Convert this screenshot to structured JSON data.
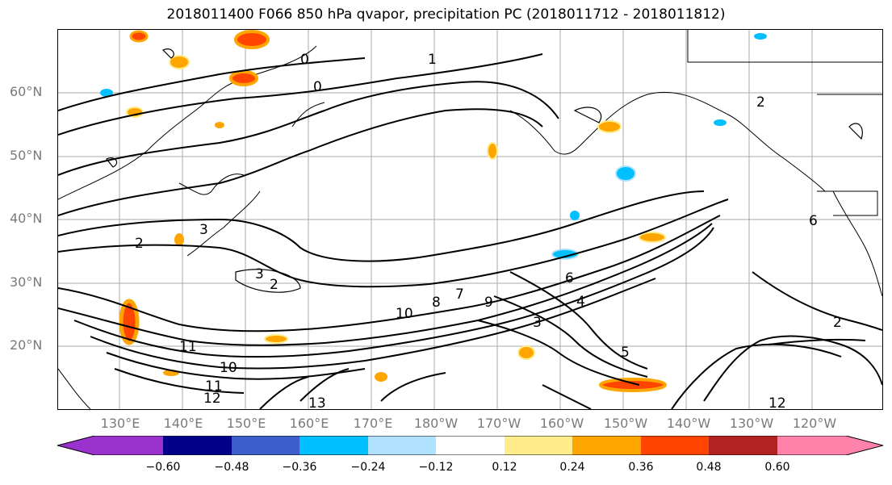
{
  "title": "2018011400 F066 850 hPa qvapor, precipitation PC (2018011712 - 2018011812)",
  "lat_labels": [
    "60°N",
    "50°N",
    "40°N",
    "30°N",
    "20°N"
  ],
  "lon_labels": [
    "130°E",
    "140°E",
    "150°E",
    "160°E",
    "170°E",
    "180°W",
    "170°W",
    "160°W",
    "150°W",
    "140°W",
    "130°W",
    "120°W"
  ],
  "colorbar": {
    "ticks": [
      "−0.60",
      "−0.48",
      "−0.36",
      "−0.24",
      "−0.12",
      "0.12",
      "0.24",
      "0.36",
      "0.48",
      "0.60"
    ],
    "colors": [
      "#9932cc",
      "#00008b",
      "#3a5fcd",
      "#00bfff",
      "#b0e2ff",
      "#ffffff",
      "#ffec8b",
      "#ffa500",
      "#ff4500",
      "#b22222",
      "#ff82ab"
    ]
  },
  "contour_labels": [
    "0",
    "0",
    "1",
    "2",
    "2",
    "2",
    "3",
    "3",
    "3",
    "4",
    "5",
    "6",
    "7",
    "8",
    "9",
    "10",
    "10",
    "11",
    "11",
    "12",
    "12",
    "13",
    "2",
    "6"
  ]
}
